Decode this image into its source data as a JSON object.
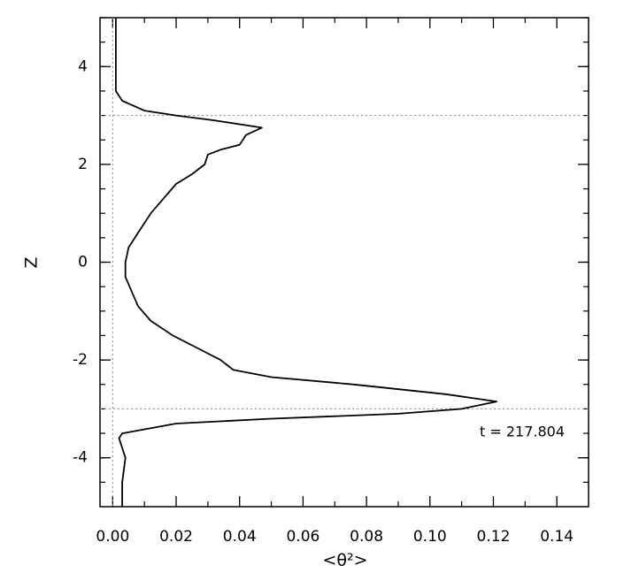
{
  "chart_data": {
    "type": "line",
    "x_label": "<θ²>",
    "y_label": "Z",
    "annotation": "t = 217.804",
    "xlim": [
      -0.004,
      0.15
    ],
    "ylim": [
      -5,
      5
    ],
    "xticks": [
      {
        "value": 0,
        "label": "0.00"
      },
      {
        "value": 0.02,
        "label": "0.02"
      },
      {
        "value": 0.04,
        "label": "0.04"
      },
      {
        "value": 0.06,
        "label": "0.06"
      },
      {
        "value": 0.08,
        "label": "0.08"
      },
      {
        "value": 0.1,
        "label": "0.10"
      },
      {
        "value": 0.12,
        "label": "0.12"
      },
      {
        "value": 0.14,
        "label": "0.14"
      }
    ],
    "yticks": [
      -4,
      -2,
      0,
      2,
      4
    ],
    "reference_y": [
      3,
      -3
    ],
    "reference_x": [
      0
    ],
    "series": [
      {
        "color": "#000000",
        "x": [
          0.003,
          0.003,
          0.004,
          0.002,
          0.003,
          0.02,
          0.05,
          0.09,
          0.11,
          0.121,
          0.105,
          0.076,
          0.05,
          0.038,
          0.034,
          0.028,
          0.019,
          0.012,
          0.008,
          0.006,
          0.004,
          0.004,
          0.005,
          0.008,
          0.012,
          0.016,
          0.02,
          0.025,
          0.029,
          0.03,
          0.034,
          0.04,
          0.042,
          0.047,
          0.032,
          0.02,
          0.01,
          0.003,
          0.001,
          0.001,
          0.001,
          0.001
        ],
        "y": [
          -5,
          -4.5,
          -4,
          -3.6,
          -3.5,
          -3.3,
          -3.2,
          -3.1,
          -3.0,
          -2.85,
          -2.7,
          -2.5,
          -2.35,
          -2.2,
          -2.0,
          -1.8,
          -1.5,
          -1.2,
          -0.9,
          -0.6,
          -0.3,
          0,
          0.3,
          0.6,
          1.0,
          1.3,
          1.6,
          1.8,
          2.0,
          2.2,
          2.3,
          2.4,
          2.6,
          2.75,
          2.9,
          3.0,
          3.1,
          3.3,
          3.5,
          4.0,
          4.5,
          5.0
        ]
      }
    ]
  }
}
